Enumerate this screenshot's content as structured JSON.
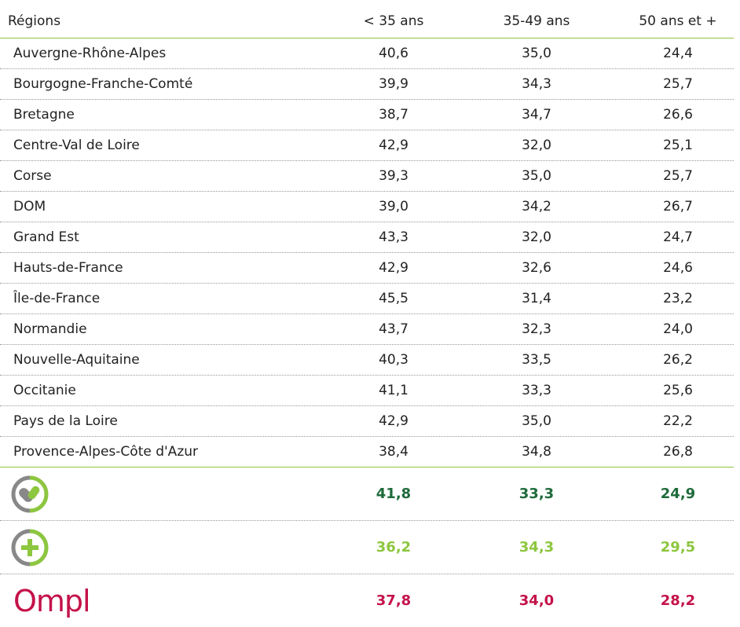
{
  "table": {
    "header": [
      "Régions",
      "< 35 ans",
      "35-49 ans",
      "50 ans et +"
    ],
    "rows": [
      [
        "Auvergne-Rhône-Alpes",
        "40,6",
        "35,0",
        "24,4"
      ],
      [
        "Bourgogne-Franche-Comté",
        "39,9",
        "34,3",
        "25,7"
      ],
      [
        "Bretagne",
        "38,7",
        "34,7",
        "26,6"
      ],
      [
        "Centre-Val de Loire",
        "42,9",
        "32,0",
        "25,1"
      ],
      [
        "Corse",
        "39,3",
        "35,0",
        "25,7"
      ],
      [
        "DOM",
        "39,0",
        "34,2",
        "26,7"
      ],
      [
        "Grand Est",
        "43,3",
        "32,0",
        "24,7"
      ],
      [
        "Hauts-de-France",
        "42,9",
        "32,6",
        "24,6"
      ],
      [
        "Île-de-France",
        "45,5",
        "31,4",
        "23,2"
      ],
      [
        "Normandie",
        "43,7",
        "32,3",
        "24,0"
      ],
      [
        "Nouvelle-Aquitaine",
        "40,3",
        "33,5",
        "26,2"
      ],
      [
        "Occitanie",
        "41,1",
        "33,3",
        "25,6"
      ],
      [
        "Pays de la Loire",
        "42,9",
        "35,0",
        "22,2"
      ],
      [
        "Provence-Alpes-Côte d'Azur",
        "38,4",
        "34,8",
        "26,8"
      ]
    ],
    "summary": [
      {
        "color": "#1e6b3a",
        "values": [
          "41,8",
          "33,3",
          "24,9"
        ]
      },
      {
        "color": "#8dc63f",
        "values": [
          "36,2",
          "34,3",
          "29,5"
        ]
      },
      {
        "logo": "Ompl",
        "color": "#c4124a",
        "values": [
          "37,8",
          "34,0",
          "28,2"
        ]
      }
    ]
  }
}
